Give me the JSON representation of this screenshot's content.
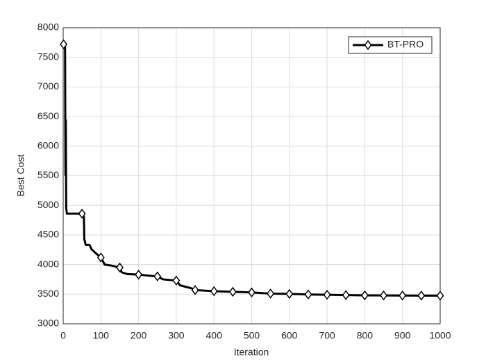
{
  "chart_data": {
    "type": "line",
    "xlabel": "Iteration",
    "ylabel": "Best Cost",
    "x": [
      1,
      5,
      6,
      7,
      8,
      10,
      50,
      51,
      55,
      56,
      60,
      70,
      75,
      85,
      100,
      110,
      130,
      150,
      155,
      170,
      200,
      250,
      265,
      300,
      310,
      340,
      350,
      400,
      450,
      500,
      550,
      600,
      650,
      700,
      750,
      800,
      850,
      900,
      950,
      1000
    ],
    "series": [
      {
        "name": "BT-PRO",
        "color": "#000000",
        "values": [
          7720,
          7720,
          5500,
          6450,
          4950,
          4860,
          4860,
          4850,
          4800,
          4430,
          4330,
          4330,
          4260,
          4200,
          4120,
          4000,
          3980,
          3950,
          3870,
          3840,
          3830,
          3800,
          3750,
          3730,
          3650,
          3600,
          3570,
          3550,
          3540,
          3530,
          3510,
          3505,
          3495,
          3490,
          3485,
          3480,
          3478,
          3477,
          3476,
          3475
        ]
      }
    ],
    "xlim": [
      0,
      1000
    ],
    "xticks": [
      0,
      100,
      200,
      300,
      400,
      500,
      600,
      700,
      800,
      900,
      1000
    ],
    "ylim": [
      3000,
      8000
    ],
    "yticks": [
      3000,
      3500,
      4000,
      4500,
      5000,
      5500,
      6000,
      6500,
      7000,
      7500,
      8000
    ],
    "grid": true,
    "legend": "top-right"
  }
}
